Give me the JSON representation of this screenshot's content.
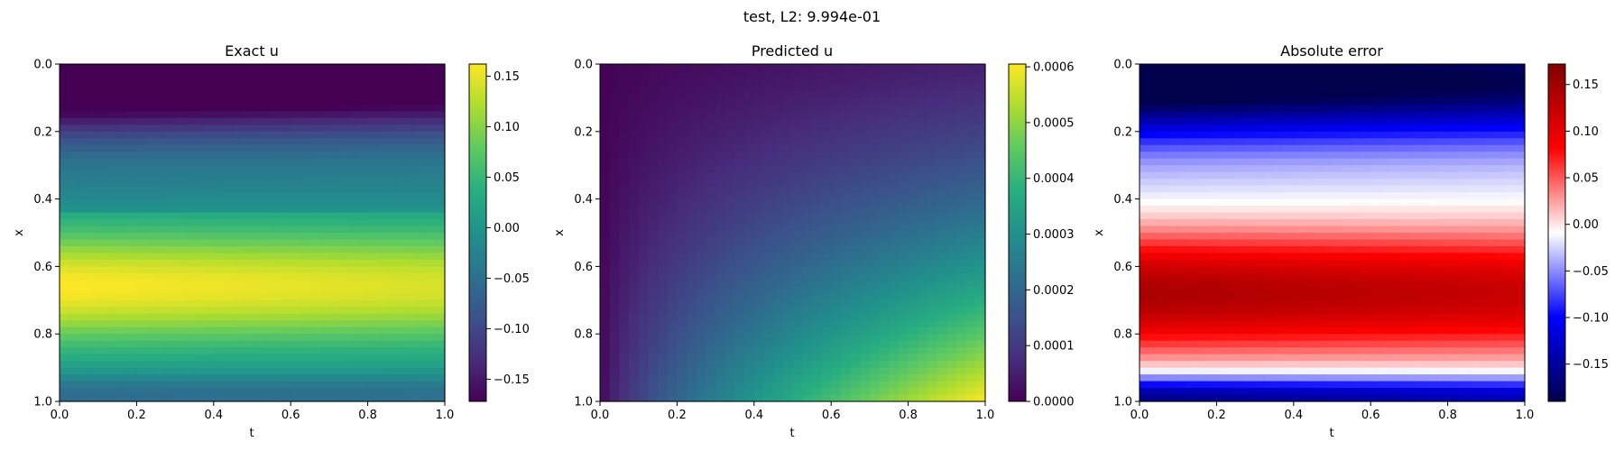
{
  "figure": {
    "suptitle": "test, L2: 9.994e-01"
  },
  "chart_data": [
    {
      "type": "heatmap",
      "title": "Exact u",
      "xlabel": "t",
      "ylabel": "x",
      "xlim": [
        0.0,
        1.0
      ],
      "ylim": [
        1.0,
        0.0
      ],
      "xticks": [
        "0.0",
        "0.2",
        "0.4",
        "0.6",
        "0.8",
        "1.0"
      ],
      "yticks": [
        "0.0",
        "0.2",
        "0.4",
        "0.6",
        "0.8",
        "1.0"
      ],
      "colormap": "viridis",
      "clim": [
        -0.172,
        0.162
      ],
      "colorbar_ticks": [
        "0.15",
        "0.10",
        "0.05",
        "0.00",
        "−0.05",
        "−0.10",
        "−0.15"
      ],
      "colorbar_tick_values": [
        0.15,
        0.1,
        0.05,
        0.0,
        -0.05,
        -0.1,
        -0.15
      ]
    },
    {
      "type": "heatmap",
      "title": "Predicted u",
      "xlabel": "t",
      "ylabel": "x",
      "xlim": [
        0.0,
        1.0
      ],
      "ylim": [
        1.0,
        0.0
      ],
      "xticks": [
        "0.0",
        "0.2",
        "0.4",
        "0.6",
        "0.8",
        "1.0"
      ],
      "yticks": [
        "0.0",
        "0.2",
        "0.4",
        "0.6",
        "0.8",
        "1.0"
      ],
      "colormap": "viridis",
      "clim": [
        0.0,
        0.000605
      ],
      "colorbar_ticks": [
        "0.0006",
        "0.0005",
        "0.0004",
        "0.0003",
        "0.0002",
        "0.0001",
        "0.0000"
      ],
      "colorbar_tick_values": [
        0.0006,
        0.0005,
        0.0004,
        0.0003,
        0.0002,
        0.0001,
        0.0
      ]
    },
    {
      "type": "heatmap",
      "title": "Absolute error",
      "xlabel": "t",
      "ylabel": "x",
      "xlim": [
        0.0,
        1.0
      ],
      "ylim": [
        1.0,
        0.0
      ],
      "xticks": [
        "0.0",
        "0.2",
        "0.4",
        "0.6",
        "0.8",
        "1.0"
      ],
      "yticks": [
        "0.0",
        "0.2",
        "0.4",
        "0.6",
        "0.8",
        "1.0"
      ],
      "colormap": "seismic",
      "clim": [
        -0.19,
        0.172
      ],
      "colorbar_ticks": [
        "0.15",
        "0.10",
        "0.05",
        "0.00",
        "−0.05",
        "−0.10",
        "−0.15"
      ],
      "colorbar_tick_values": [
        0.15,
        0.1,
        0.05,
        0.0,
        -0.05,
        -0.1,
        -0.15
      ]
    }
  ]
}
